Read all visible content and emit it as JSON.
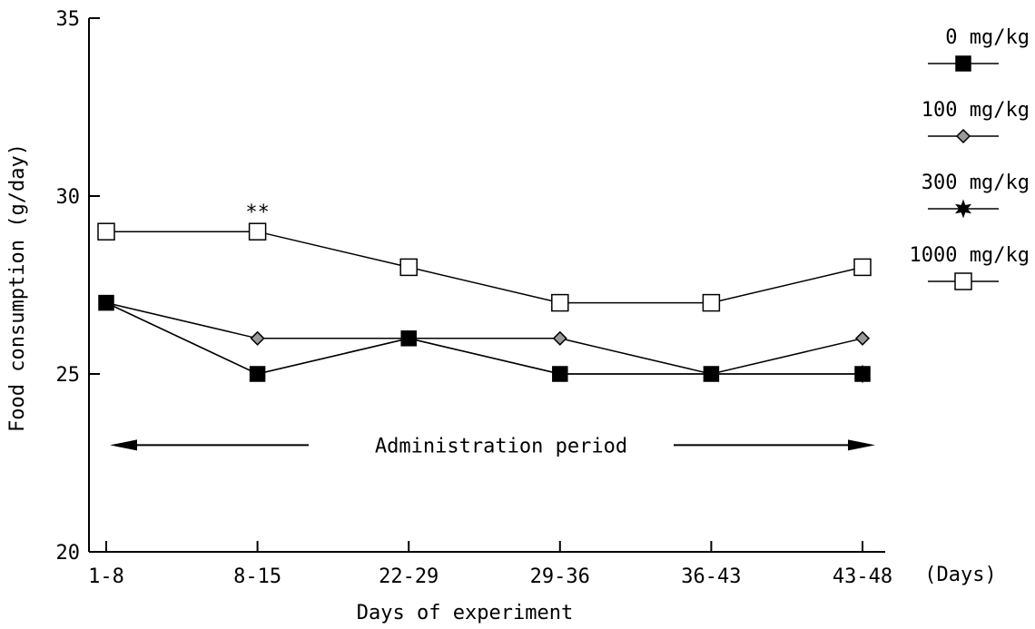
{
  "chart_data": {
    "type": "line",
    "title": "",
    "xlabel": "Days of experiment",
    "ylabel": "Food consumption (g/day)",
    "x_unit_label": "(Days)",
    "categories": [
      "1-8",
      "8-15",
      "22-29",
      "29-36",
      "36-43",
      "43-48"
    ],
    "ylim": [
      20,
      35
    ],
    "yticks": [
      20,
      25,
      30,
      35
    ],
    "grid": false,
    "legend_position": "right",
    "series": [
      {
        "name": "0 mg/kg",
        "marker": "filled-square",
        "values": [
          27,
          25,
          26,
          25,
          25,
          25
        ]
      },
      {
        "name": "100 mg/kg",
        "marker": "diamond",
        "values": [
          27,
          26,
          26,
          26,
          25,
          26
        ]
      },
      {
        "name": "300 mg/kg",
        "marker": "star",
        "values": [
          27,
          25,
          26,
          25,
          25,
          25
        ]
      },
      {
        "name": "1000 mg/kg",
        "marker": "open-square",
        "values": [
          29,
          29,
          28,
          27,
          27,
          28
        ]
      }
    ],
    "annotations": [
      {
        "text": "**",
        "category": "8-15",
        "series": "1000 mg/kg"
      },
      {
        "text": "Administration period",
        "type": "double-arrow",
        "from": "1-8",
        "to": "43-48",
        "y": 23
      }
    ]
  }
}
